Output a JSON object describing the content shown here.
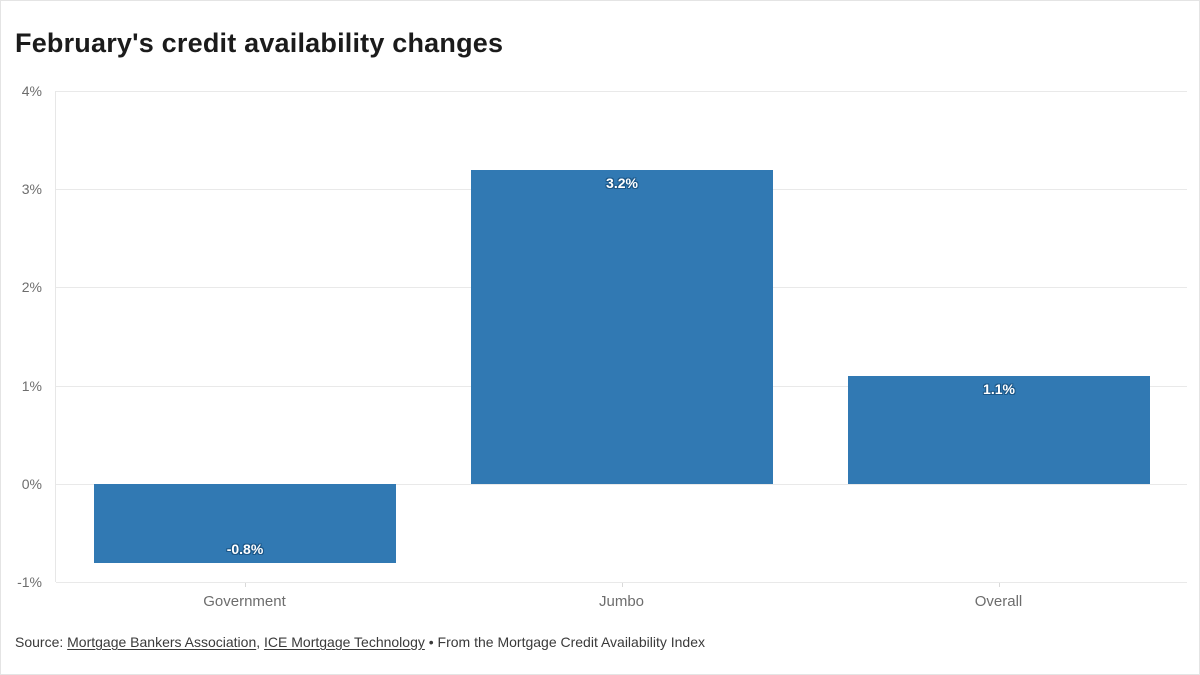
{
  "chart_data": {
    "type": "bar",
    "title": "February's credit availability changes",
    "categories": [
      "Government",
      "Jumbo",
      "Overall"
    ],
    "values": [
      -0.8,
      3.2,
      1.1
    ],
    "value_labels": [
      "-0.8%",
      "3.2%",
      "1.1%"
    ],
    "ylim": [
      -1,
      4
    ],
    "yticks": [
      4,
      3,
      2,
      1,
      0,
      -1
    ],
    "ytick_labels": [
      "4%",
      "3%",
      "2%",
      "1%",
      "0%",
      "-1%"
    ],
    "xlabel": "",
    "ylabel": "",
    "grid": true,
    "legend": "none",
    "colors": {
      "bar": "#3179b3",
      "value_label_text": "#ffffff",
      "value_label_halo": "#1c5788",
      "gridline": "#e9e9e9",
      "axis_text": "#6d6d6d"
    }
  },
  "footer": {
    "prefix": "Source: ",
    "links": [
      {
        "label": "Mortgage Bankers Association"
      },
      {
        "label": "ICE Mortgage Technology"
      }
    ],
    "link_separator": ", ",
    "suffix": " • From the Mortgage Credit Availability Index"
  }
}
